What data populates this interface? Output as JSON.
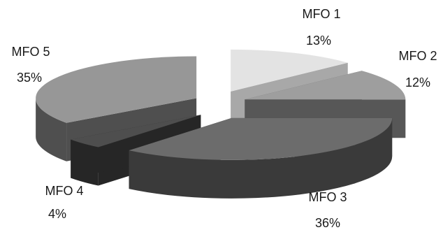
{
  "chart_data": {
    "type": "pie",
    "style": "3d-exploded",
    "categories": [
      "MFO 1",
      "MFO 2",
      "MFO 3",
      "MFO 4",
      "MFO 5"
    ],
    "values": [
      13,
      12,
      36,
      4,
      35
    ],
    "value_labels": [
      "13%",
      "12%",
      "36%",
      "4%",
      "35%"
    ],
    "colors": {
      "top": [
        "#e3e3e3",
        "#9e9e9e",
        "#6c6c6c",
        "#4e4e4e",
        "#979797"
      ],
      "side": [
        "#a8a8a8",
        "#575757",
        "#3a3a3a",
        "#262626",
        "#4f4f4f"
      ]
    },
    "title": "",
    "legend": "none"
  }
}
